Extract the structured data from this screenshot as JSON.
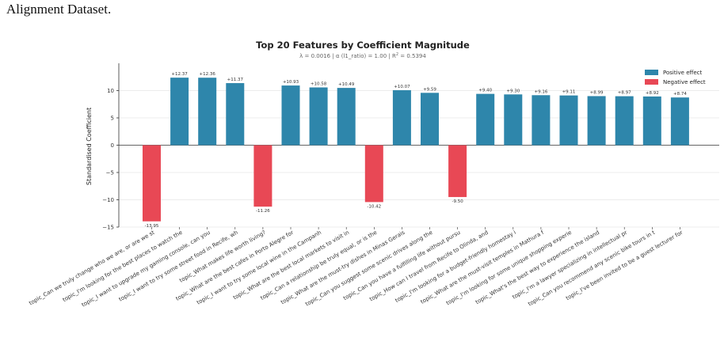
{
  "page_text": "Alignment Dataset.",
  "colors": {
    "positive": "#2E86AB",
    "negative": "#E84855",
    "grid": "#e6e6e6",
    "axis": "#333333"
  },
  "chart_data": {
    "type": "bar",
    "title": "Top 20 Features by Coefficient Magnitude",
    "subtitle_parts": [
      "λ = 0.0016",
      "α (l1_ratio) = 1.00"
    ],
    "r2_label": "R",
    "r2_value": " = 0.5394",
    "ylabel": "Standardised Coefficient",
    "ylim": [
      -15,
      15
    ],
    "yticks": [
      -15,
      -10,
      -5,
      0,
      5,
      10
    ],
    "ytick_labels": [
      "−15",
      "−10",
      "−5",
      "0",
      "5",
      "10"
    ],
    "legend": {
      "position": "top-right",
      "positive": "Positive effect",
      "negative": "Negative effect"
    },
    "categories": [
      "topic_Can we truly change who we are, or are we st",
      "topic_I'm looking for the best places to watch the",
      "topic_I want to upgrade my gaming console, can you",
      "topic_I want to try some street food in Recife, wh",
      "topic_What makes life worth living?",
      "topic_What are the best cafes in Porto Alegre for",
      "topic_I want to try some local wine in the Campanh",
      "topic_What are the best local markets to visit in",
      "topic_Can a relationship be truly equal, or is the",
      "topic_What are the must-try dishes in Minas Gerais",
      "topic_Can you suggest some scenic drives along the",
      "topic_Can you have a fulfilling life without pursu",
      "topic_How can I travel from Recife to Olinda, and",
      "topic_I'm looking for a budget-friendly homestay i",
      "topic_What are the must-visit temples in Mathura f",
      "topic_I'm looking for some unique shopping experie",
      "topic_What's the best way to experience the island",
      "topic_I'm a lawyer specializing in intellectual pr",
      "topic_Can you recommend any scenic bike tours in t",
      "topic_I've been invited to be a guest lecturer for"
    ],
    "values": [
      -13.95,
      12.37,
      12.36,
      11.37,
      -11.26,
      10.93,
      10.58,
      10.49,
      -10.42,
      10.07,
      9.59,
      -9.5,
      9.4,
      9.3,
      9.16,
      9.11,
      8.99,
      8.97,
      8.92,
      8.74
    ],
    "value_labels": [
      "-13.95",
      "+12.37",
      "+12.36",
      "+11.37",
      "-11.26",
      "+10.93",
      "+10.58",
      "+10.49",
      "-10.42",
      "+10.07",
      "+9.59",
      "-9.50",
      "+9.40",
      "+9.30",
      "+9.16",
      "+9.11",
      "+8.99",
      "+8.97",
      "+8.92",
      "+8.74"
    ],
    "grid": "horizontal"
  }
}
